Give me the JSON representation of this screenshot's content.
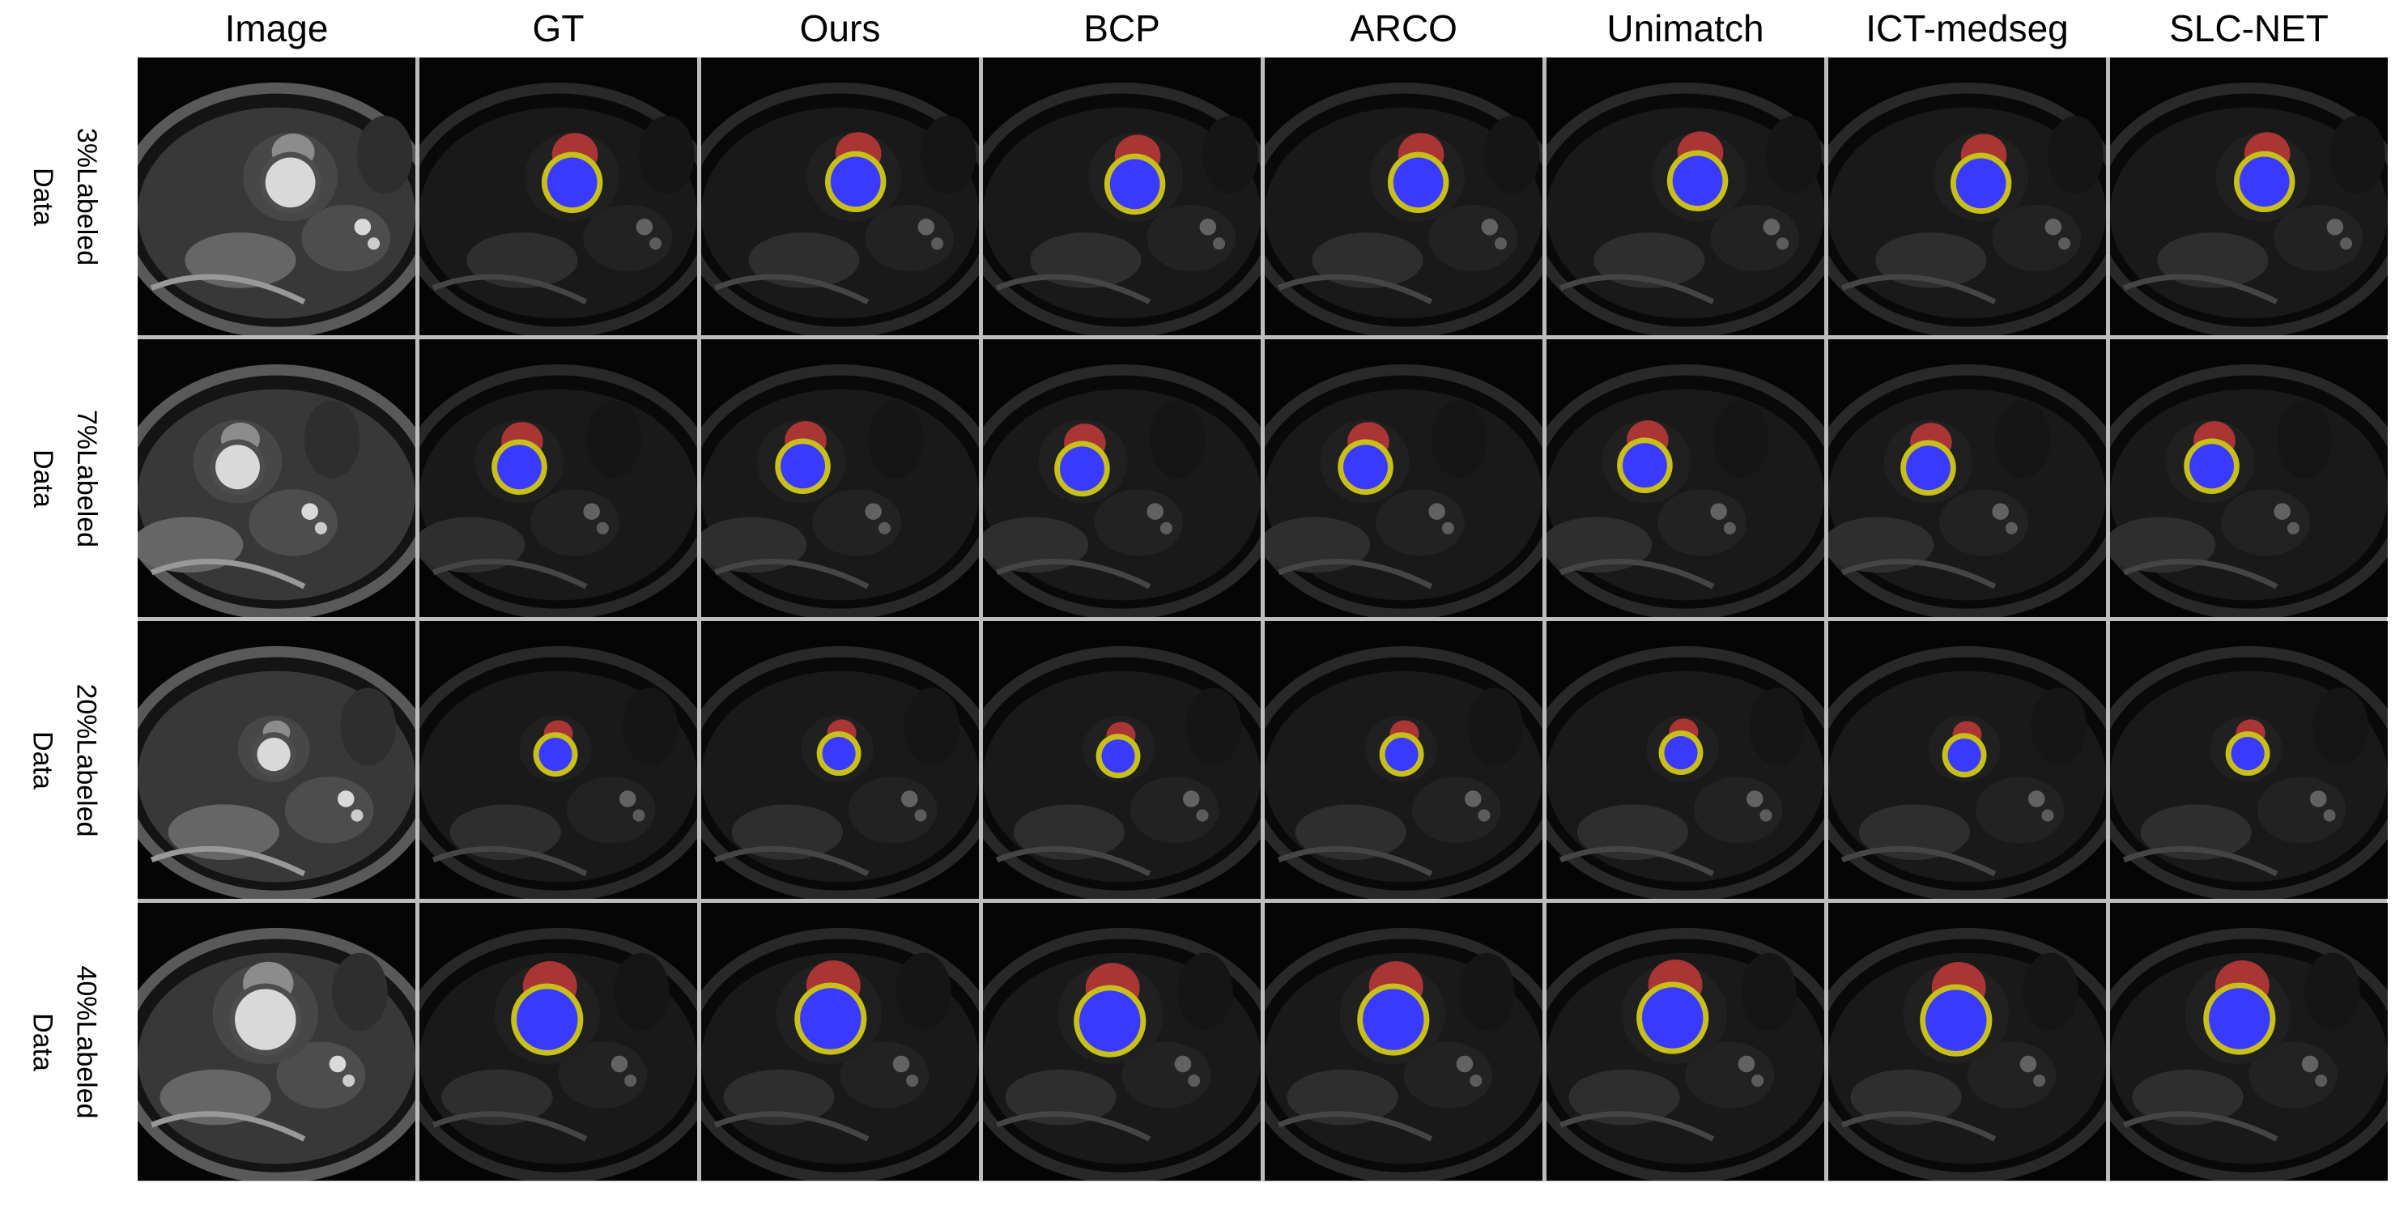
{
  "figure": {
    "columns": [
      "Image",
      "GT",
      "Ours",
      "BCP",
      "ARCO",
      "Unimatch",
      "ICT-medseg",
      "SLC-NET"
    ],
    "rows": [
      {
        "label_line1": "3%Labeled",
        "label_line2": "Data"
      },
      {
        "label_line1": "7%Labeled",
        "label_line2": "Data"
      },
      {
        "label_line1": "20%Labeled",
        "label_line2": "Data"
      },
      {
        "label_line1": "40%Labeled",
        "label_line2": "Data"
      }
    ],
    "legend_colors": {
      "class_red": "#c23a3a",
      "class_yellow": "#c8c018",
      "class_blue": "#3a3aff"
    }
  }
}
